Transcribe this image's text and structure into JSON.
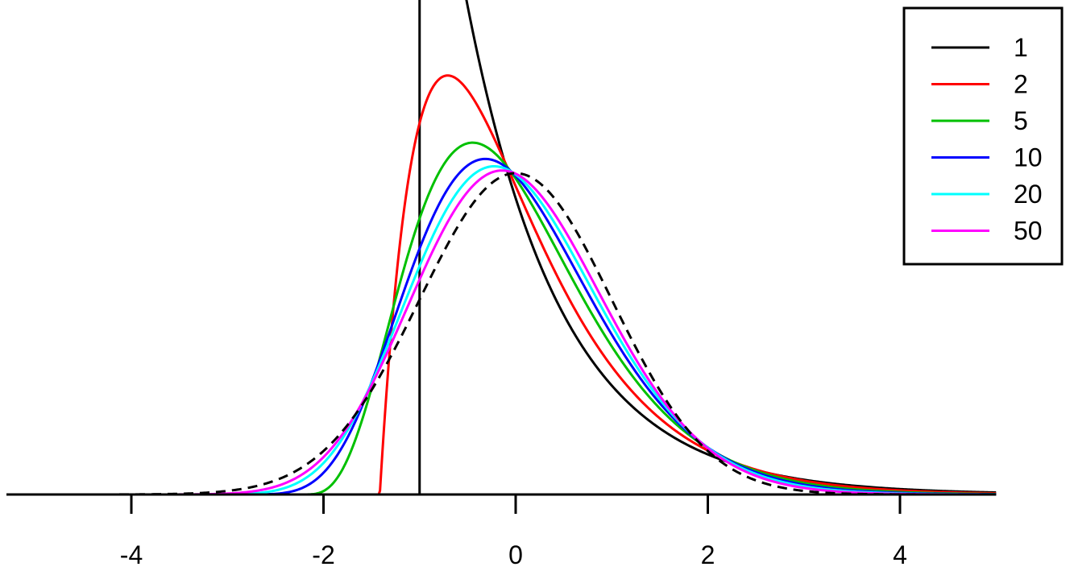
{
  "chart_data": {
    "type": "line",
    "title": "",
    "xlabel": "",
    "ylabel": "",
    "xlim": [
      -5.3,
      5.3
    ],
    "ylim": [
      0,
      1.0
    ],
    "x_ticks": [
      -4,
      -2,
      0,
      2,
      4
    ],
    "x_tick_labels": [
      "-4",
      "-2",
      "0",
      "2",
      "4"
    ],
    "y_axis_shown": false,
    "grid": false,
    "legend": {
      "placement": "top-right",
      "entries": [
        {
          "label": "1",
          "color": "#000000"
        },
        {
          "label": "2",
          "color": "#ff0000"
        },
        {
          "label": "5",
          "color": "#00c000"
        },
        {
          "label": "10",
          "color": "#0000ff"
        },
        {
          "label": "20",
          "color": "#00ffff"
        },
        {
          "label": "50",
          "color": "#ff00ff"
        }
      ]
    },
    "series": [
      {
        "name": "1",
        "k": 1,
        "color": "#000000",
        "dashed": false
      },
      {
        "name": "2",
        "k": 2,
        "color": "#ff0000",
        "dashed": false
      },
      {
        "name": "5",
        "k": 5,
        "color": "#00c000",
        "dashed": false
      },
      {
        "name": "10",
        "k": 10,
        "color": "#0000ff",
        "dashed": false
      },
      {
        "name": "20",
        "k": 20,
        "color": "#00ffff",
        "dashed": false
      },
      {
        "name": "50",
        "k": 50,
        "color": "#ff00ff",
        "dashed": false
      },
      {
        "k": null,
        "color": "#000000",
        "dashed": true
      }
    ],
    "x_sample": [
      -5,
      -4,
      -3,
      -2,
      -1.5,
      -1,
      -0.5,
      0,
      0.5,
      1,
      1.5,
      2,
      3,
      4,
      5
    ],
    "annotations": []
  }
}
